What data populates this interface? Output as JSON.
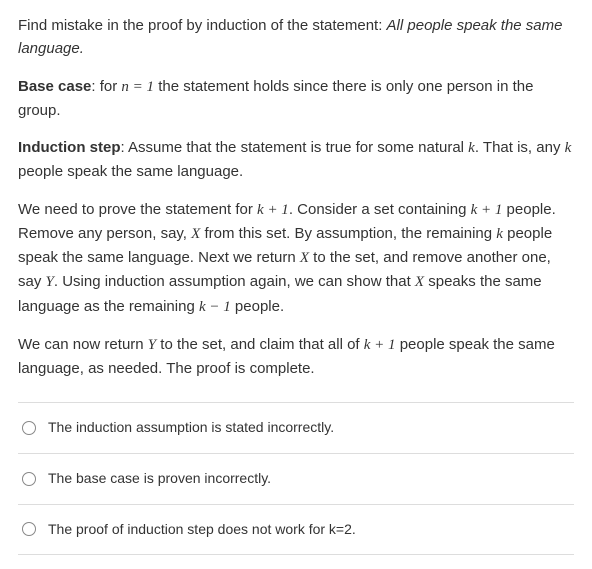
{
  "question": {
    "intro": "Find mistake in the proof by induction of the statement:  ",
    "statement": "All people speak the same language."
  },
  "baseCase": {
    "label": "Base case",
    "prefix": ": for  ",
    "expr1": "n = 1",
    "suffix": "  the statement holds since there is only one person in the group."
  },
  "inductionStep": {
    "label": "Induction step",
    "prefix": ": Assume that the statement is true for some natural ",
    "k1": "k",
    "mid": ". That is, any  ",
    "k2": "k",
    "suffix": " people speak the same language."
  },
  "para3": {
    "t1": "We need to prove the statement for  ",
    "e1": "k + 1",
    "t2": ". Consider a set containing  ",
    "e2": "k + 1",
    "t3": " people. Remove any person, say,  ",
    "e3": "X",
    "t4": " from this set. By assumption, the remaining  ",
    "e4": "k",
    "t5": " people  speak the same language. Next we return   ",
    "e5": "X",
    "t6": " to the set, and remove another one, say   ",
    "e6": "Y",
    "t7": ". Using induction assumption again, we can show that  ",
    "e7": "X",
    "t8": " speaks the same language as the remaining  ",
    "e8": "k − 1",
    "t9": " people."
  },
  "para4": {
    "t1": "We can now return  ",
    "e1": "Y",
    "t2": " to the set, and claim that all of  ",
    "e2": "k + 1",
    "t3": " people speak the same language, as needed. The proof is complete."
  },
  "options": [
    {
      "label": "The induction assumption is stated incorrectly."
    },
    {
      "label": "The base case is proven incorrectly."
    },
    {
      "label": "The proof of induction step does not work for k=2."
    }
  ]
}
